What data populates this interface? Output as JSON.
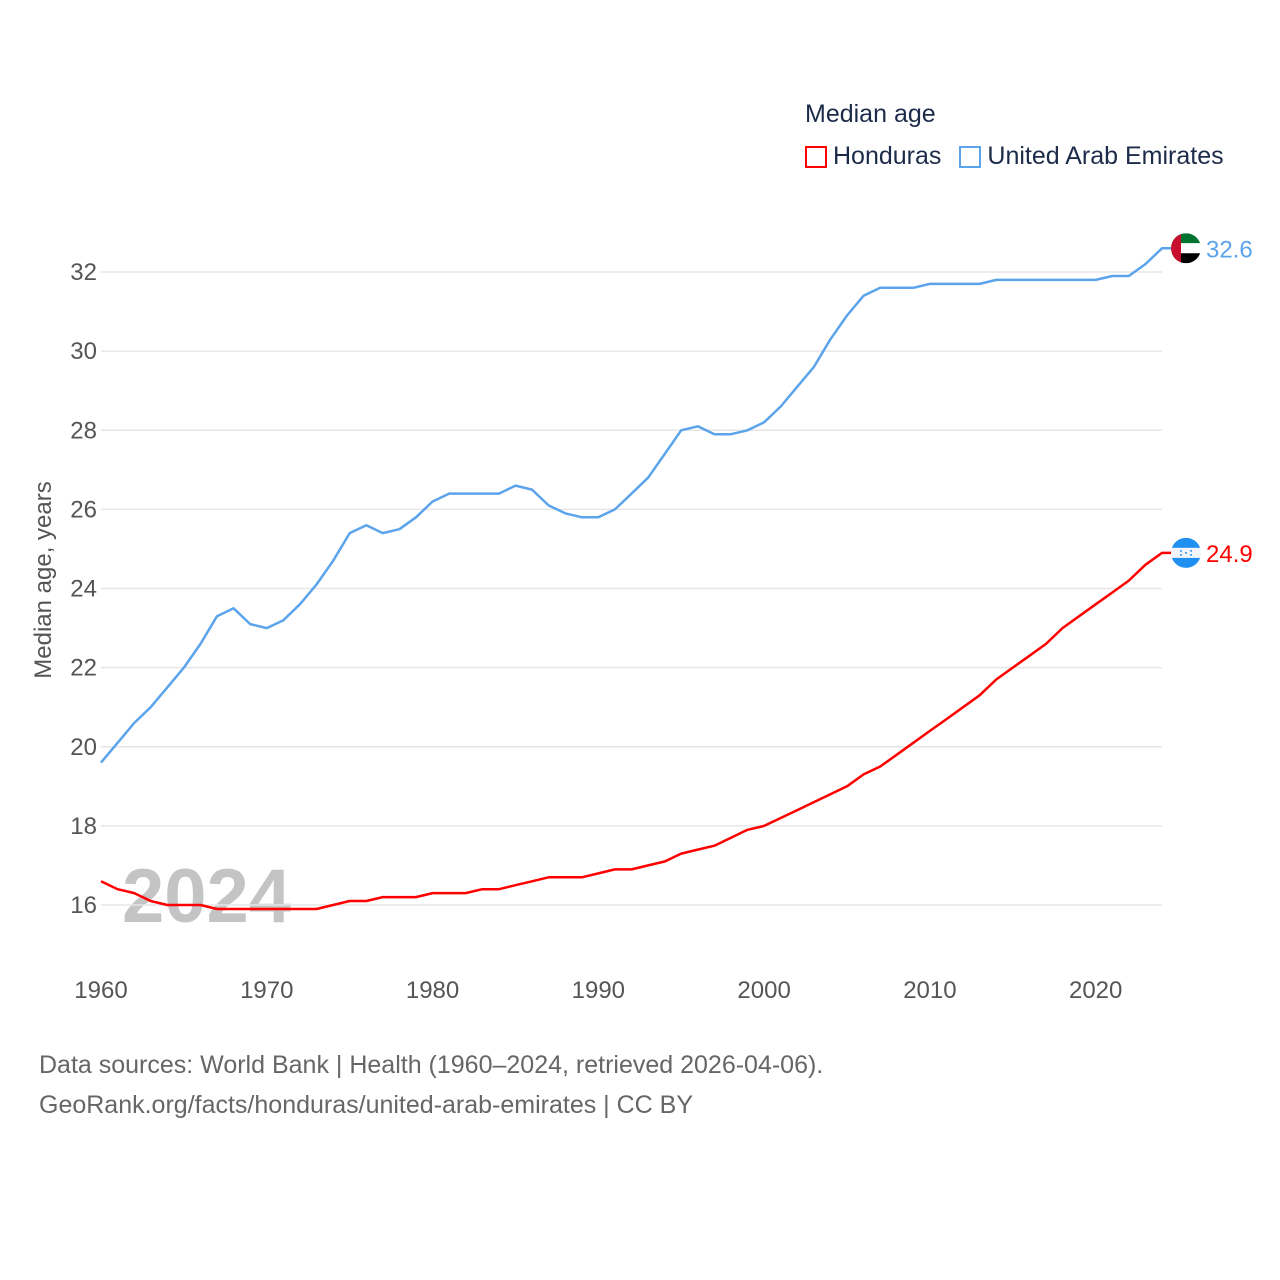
{
  "chart_data": {
    "type": "line",
    "title": "Median age",
    "ylabel": "Median age, years",
    "xlabel": "",
    "watermark_year": "2024",
    "xlim": [
      1960,
      2024
    ],
    "ylim": [
      15,
      33
    ],
    "x_ticks": [
      1960,
      1970,
      1980,
      1990,
      2000,
      2010,
      2020
    ],
    "y_ticks": [
      16,
      18,
      20,
      22,
      24,
      26,
      28,
      30,
      32
    ],
    "grid": true,
    "legend_placement": "top-right",
    "x": [
      1960,
      1961,
      1962,
      1963,
      1964,
      1965,
      1966,
      1967,
      1968,
      1969,
      1970,
      1971,
      1972,
      1973,
      1974,
      1975,
      1976,
      1977,
      1978,
      1979,
      1980,
      1981,
      1982,
      1983,
      1984,
      1985,
      1986,
      1987,
      1988,
      1989,
      1990,
      1991,
      1992,
      1993,
      1994,
      1995,
      1996,
      1997,
      1998,
      1999,
      2000,
      2001,
      2002,
      2003,
      2004,
      2005,
      2006,
      2007,
      2008,
      2009,
      2010,
      2011,
      2012,
      2013,
      2014,
      2015,
      2016,
      2017,
      2018,
      2019,
      2020,
      2021,
      2022,
      2023,
      2024
    ],
    "series": [
      {
        "name": "Honduras",
        "color": "#ff0000",
        "end_label": "24.9",
        "flag": "honduras-flag",
        "values": [
          16.6,
          16.4,
          16.3,
          16.1,
          16.0,
          16.0,
          16.0,
          15.9,
          15.9,
          15.9,
          15.9,
          15.9,
          15.9,
          15.9,
          16.0,
          16.1,
          16.1,
          16.2,
          16.2,
          16.2,
          16.3,
          16.3,
          16.3,
          16.4,
          16.4,
          16.5,
          16.6,
          16.7,
          16.7,
          16.7,
          16.8,
          16.9,
          16.9,
          17.0,
          17.1,
          17.3,
          17.4,
          17.5,
          17.7,
          17.9,
          18.0,
          18.2,
          18.4,
          18.6,
          18.8,
          19.0,
          19.3,
          19.5,
          19.8,
          20.1,
          20.4,
          20.7,
          21.0,
          21.3,
          21.7,
          22.0,
          22.3,
          22.6,
          23.0,
          23.3,
          23.6,
          23.9,
          24.2,
          24.6,
          24.9
        ]
      },
      {
        "name": "United Arab Emirates",
        "color": "#5ba4ec",
        "end_label": "32.6",
        "flag": "uae-flag",
        "values": [
          19.6,
          20.1,
          20.6,
          21.0,
          21.5,
          22.0,
          22.6,
          23.3,
          23.5,
          23.1,
          23.0,
          23.2,
          23.6,
          24.1,
          24.7,
          25.4,
          25.6,
          25.4,
          25.5,
          25.8,
          26.2,
          26.4,
          26.4,
          26.4,
          26.4,
          26.6,
          26.5,
          26.1,
          25.9,
          25.8,
          25.8,
          26.0,
          26.4,
          26.8,
          27.4,
          28.0,
          28.1,
          27.9,
          27.9,
          28.0,
          28.2,
          28.6,
          29.1,
          29.6,
          30.3,
          30.9,
          31.4,
          31.6,
          31.6,
          31.6,
          31.7,
          31.7,
          31.7,
          31.7,
          31.8,
          31.8,
          31.8,
          31.8,
          31.8,
          31.8,
          31.8,
          31.9,
          31.9,
          32.2,
          32.6
        ]
      }
    ]
  },
  "source": {
    "line1": "Data sources: World Bank | Health (1960–2024, retrieved 2026-04-06).",
    "line2": "GeoRank.org/facts/honduras/united-arab-emirates | CC BY"
  }
}
